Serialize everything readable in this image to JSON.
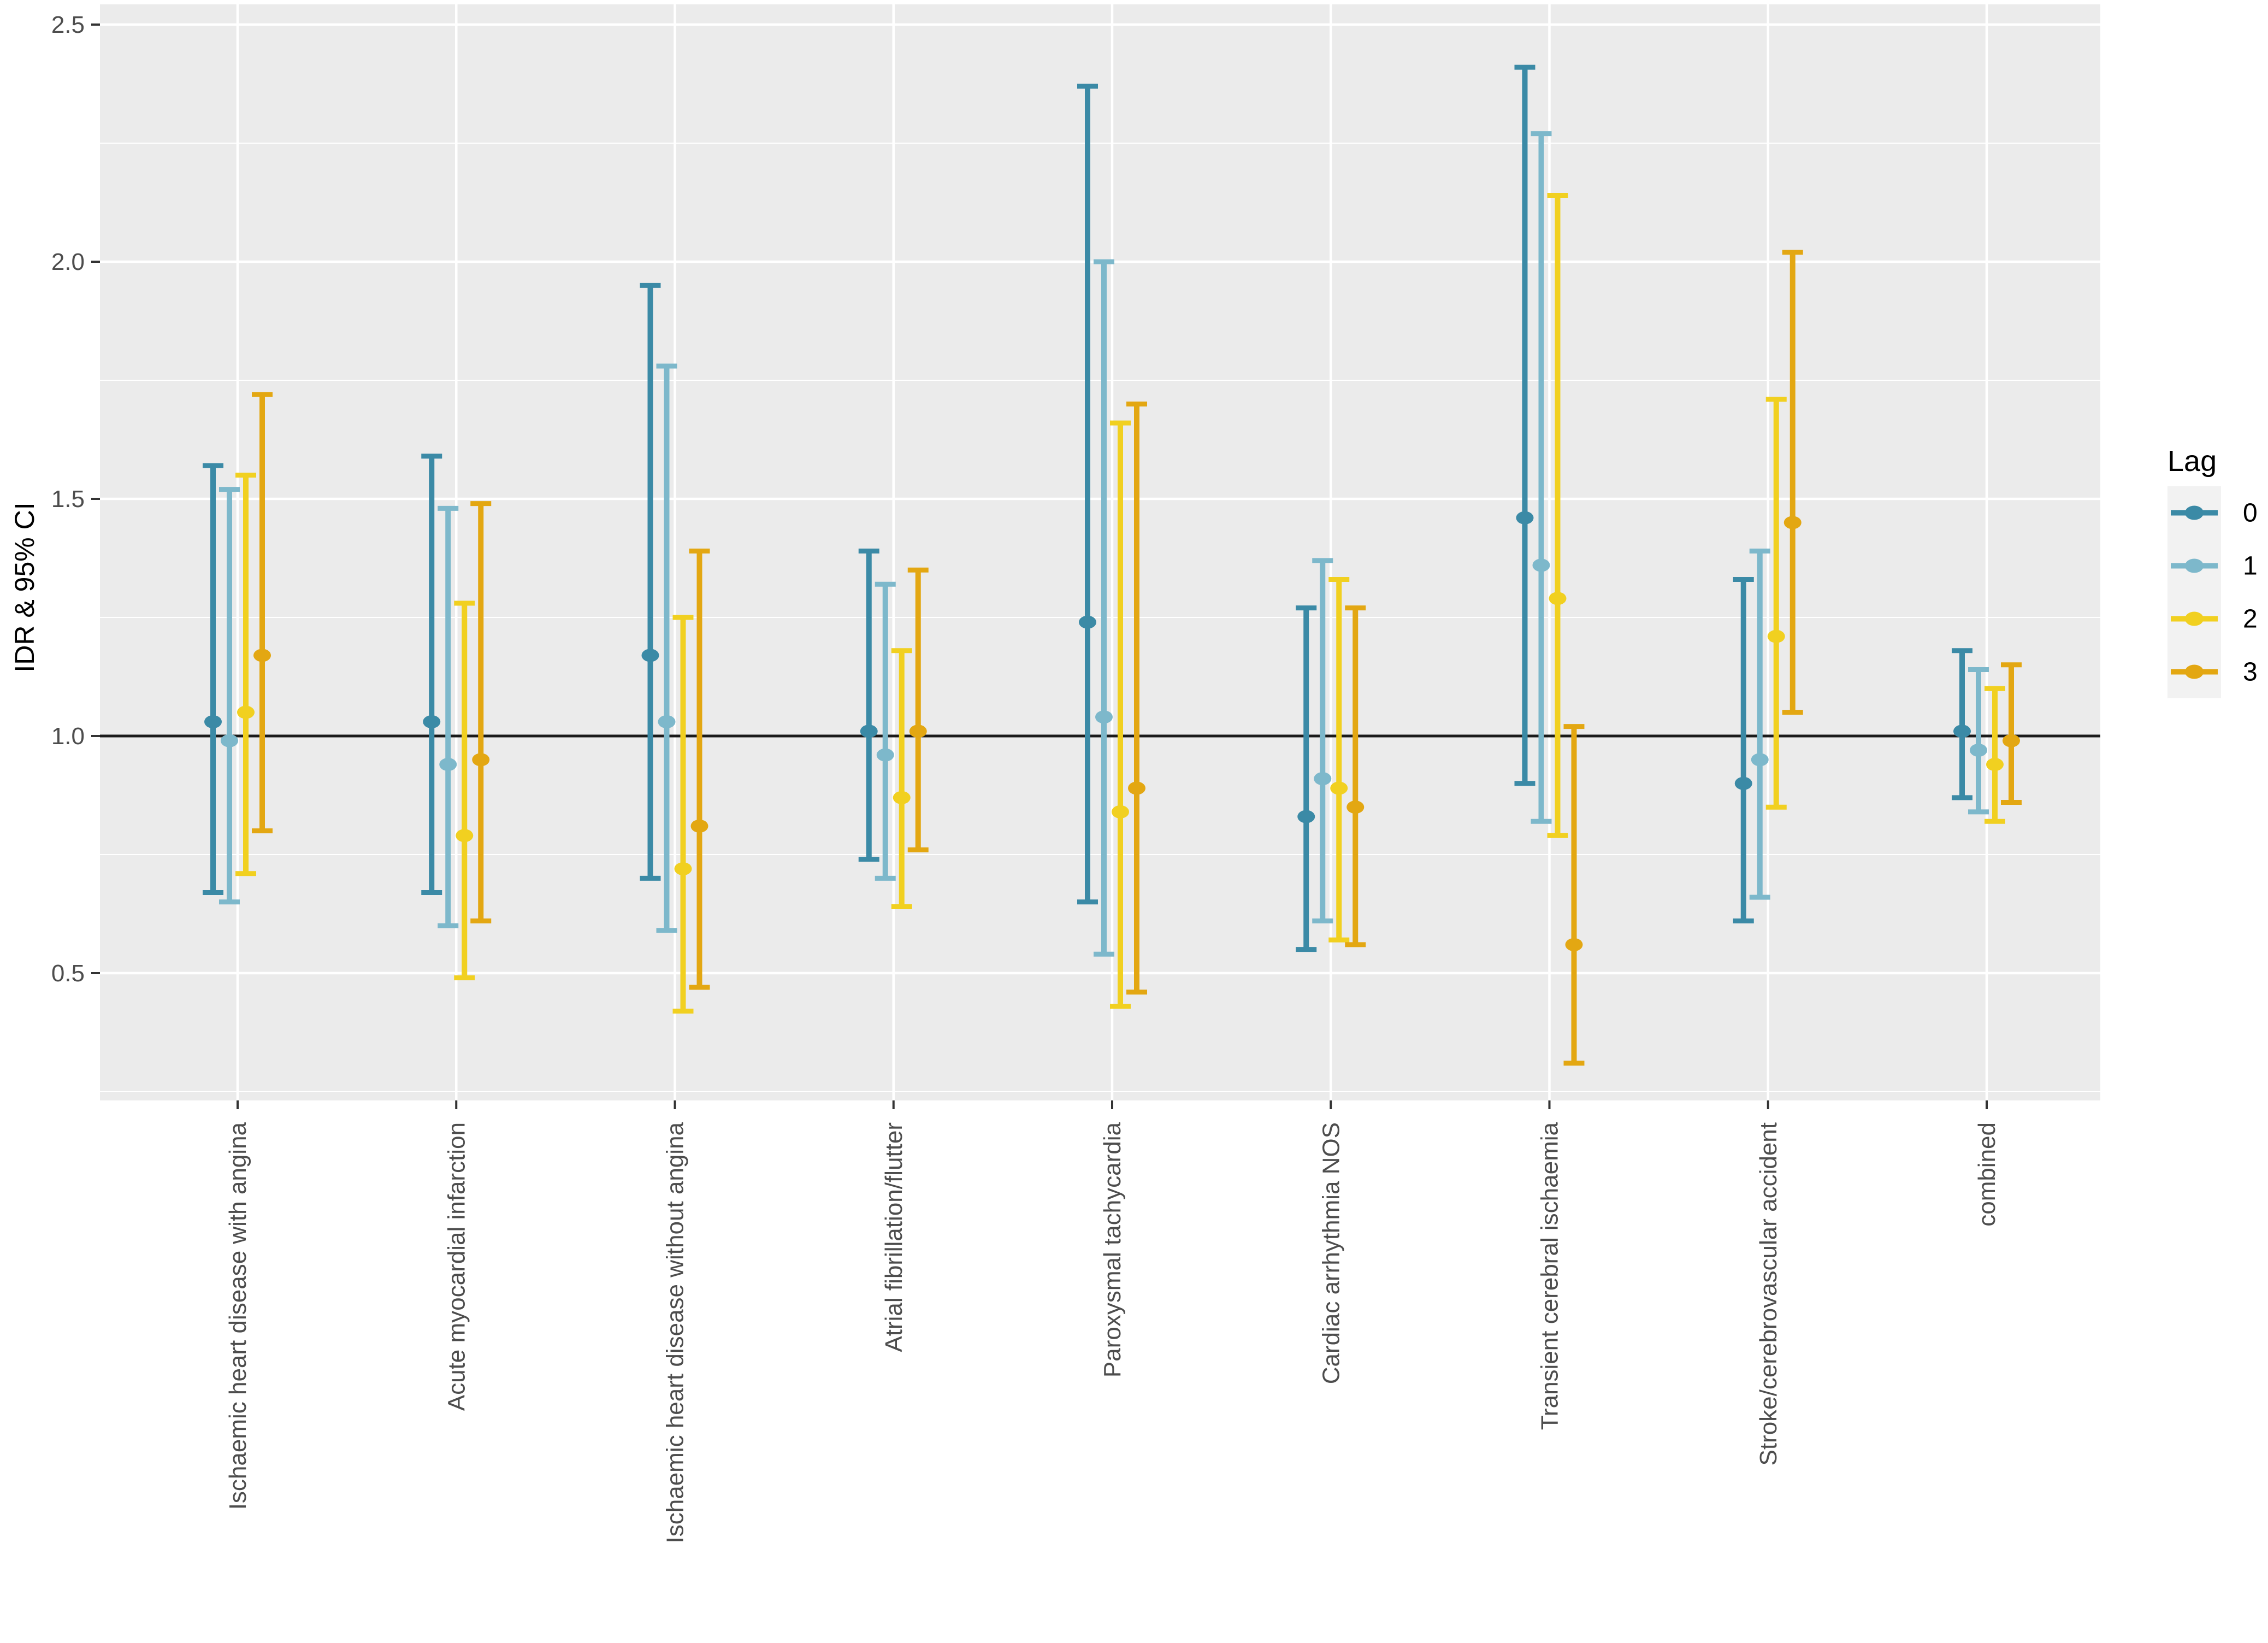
{
  "chart_data": {
    "type": "pointrange",
    "title": "",
    "xlabel": "",
    "ylabel": "IDR & 95% CI",
    "ylim": [
      0.23,
      2.54
    ],
    "y_ticks": [
      0.5,
      1.0,
      1.5,
      2.0,
      2.5
    ],
    "y_minor_ticks": [
      0.25,
      0.75,
      1.25,
      1.75,
      2.25
    ],
    "reference_line": 1.0,
    "grid": "on",
    "panel_bg": "#ebebeb",
    "gridline_color": "#ffffff",
    "ref_line_color": "#1a1a1a",
    "tick_label_color": "#4d4d4d",
    "axis_title_color": "#000000",
    "categories": [
      "Ischaemic heart disease with angina",
      "Acute myocardial infarction",
      "Ischaemic heart disease without angina",
      "Atrial fibrillation/flutter",
      "Paroxysmal tachycardia",
      "Cardiac arrhythmia NOS",
      "Transient cerebral ischaemia",
      "Stroke/cerebrovascular accident",
      "combined"
    ],
    "legend": {
      "title": "Lag",
      "position": "right",
      "key_bg": "#f2f2f2",
      "entries": [
        {
          "label": "0",
          "color": "#3b8aa6"
        },
        {
          "label": "1",
          "color": "#7db8cb"
        },
        {
          "label": "2",
          "color": "#f1d020"
        },
        {
          "label": "3",
          "color": "#e3a712"
        }
      ]
    },
    "series": [
      {
        "name": "0",
        "color": "#3b8aa6",
        "points": [
          {
            "est": 1.03,
            "lo": 0.67,
            "hi": 1.57
          },
          {
            "est": 1.03,
            "lo": 0.67,
            "hi": 1.59
          },
          {
            "est": 1.17,
            "lo": 0.7,
            "hi": 1.95
          },
          {
            "est": 1.01,
            "lo": 0.74,
            "hi": 1.39
          },
          {
            "est": 1.24,
            "lo": 0.65,
            "hi": 2.37
          },
          {
            "est": 0.83,
            "lo": 0.55,
            "hi": 1.27
          },
          {
            "est": 1.46,
            "lo": 0.9,
            "hi": 2.41
          },
          {
            "est": 0.9,
            "lo": 0.61,
            "hi": 1.33
          },
          {
            "est": 1.01,
            "lo": 0.87,
            "hi": 1.18
          }
        ]
      },
      {
        "name": "1",
        "color": "#7db8cb",
        "points": [
          {
            "est": 0.99,
            "lo": 0.65,
            "hi": 1.52
          },
          {
            "est": 0.94,
            "lo": 0.6,
            "hi": 1.48
          },
          {
            "est": 1.03,
            "lo": 0.59,
            "hi": 1.78
          },
          {
            "est": 0.96,
            "lo": 0.7,
            "hi": 1.32
          },
          {
            "est": 1.04,
            "lo": 0.54,
            "hi": 2.0
          },
          {
            "est": 0.91,
            "lo": 0.61,
            "hi": 1.37
          },
          {
            "est": 1.36,
            "lo": 0.82,
            "hi": 2.27
          },
          {
            "est": 0.95,
            "lo": 0.66,
            "hi": 1.39
          },
          {
            "est": 0.97,
            "lo": 0.84,
            "hi": 1.14
          }
        ]
      },
      {
        "name": "2",
        "color": "#f1d020",
        "points": [
          {
            "est": 1.05,
            "lo": 0.71,
            "hi": 1.55
          },
          {
            "est": 0.79,
            "lo": 0.49,
            "hi": 1.28
          },
          {
            "est": 0.72,
            "lo": 0.42,
            "hi": 1.25
          },
          {
            "est": 0.87,
            "lo": 0.64,
            "hi": 1.18
          },
          {
            "est": 0.84,
            "lo": 0.43,
            "hi": 1.66
          },
          {
            "est": 0.89,
            "lo": 0.57,
            "hi": 1.33
          },
          {
            "est": 1.29,
            "lo": 0.79,
            "hi": 2.14
          },
          {
            "est": 1.21,
            "lo": 0.85,
            "hi": 1.71
          },
          {
            "est": 0.94,
            "lo": 0.82,
            "hi": 1.1
          }
        ]
      },
      {
        "name": "3",
        "color": "#e3a712",
        "points": [
          {
            "est": 1.17,
            "lo": 0.8,
            "hi": 1.72
          },
          {
            "est": 0.95,
            "lo": 0.61,
            "hi": 1.49
          },
          {
            "est": 0.81,
            "lo": 0.47,
            "hi": 1.39
          },
          {
            "est": 1.01,
            "lo": 0.76,
            "hi": 1.35
          },
          {
            "est": 0.89,
            "lo": 0.46,
            "hi": 1.7
          },
          {
            "est": 0.85,
            "lo": 0.56,
            "hi": 1.27
          },
          {
            "est": 0.56,
            "lo": 0.31,
            "hi": 1.02
          },
          {
            "est": 1.45,
            "lo": 1.05,
            "hi": 2.02
          },
          {
            "est": 0.99,
            "lo": 0.86,
            "hi": 1.15
          }
        ]
      }
    ]
  }
}
